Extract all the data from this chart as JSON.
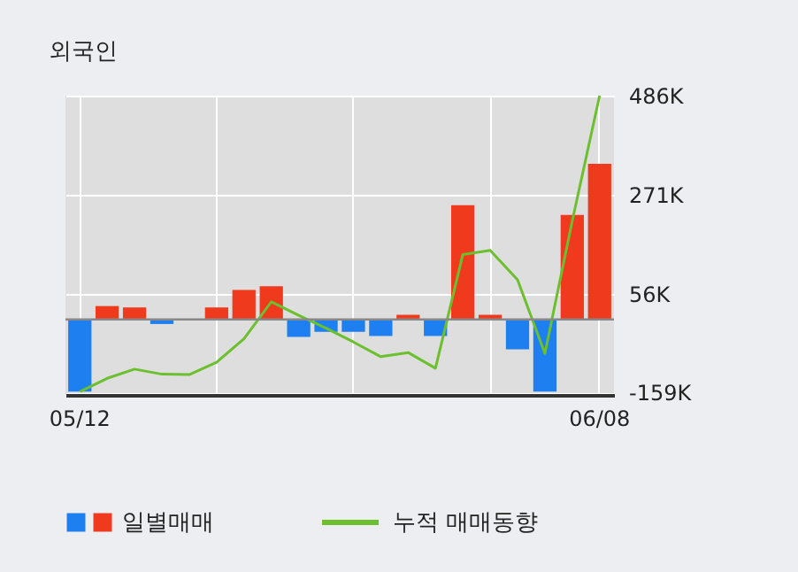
{
  "chart_data": {
    "type": "bar",
    "title": "외국인",
    "categories": [
      "05/12",
      null,
      null,
      null,
      null,
      null,
      null,
      null,
      null,
      null,
      null,
      null,
      null,
      null,
      null,
      null,
      null,
      null,
      null,
      "06/08"
    ],
    "series": [
      {
        "name": "일별매매",
        "colors": [
          "#1e7ff0",
          "#f03a1e",
          "#f03a1e",
          "#1e7ff0",
          "#f03a1e",
          "#f03a1e",
          "#f03a1e",
          "#f03a1e",
          "#1e7ff0",
          "#1e7ff0",
          "#1e7ff0",
          "#1e7ff0",
          "#f03a1e",
          "#1e7ff0",
          "#f03a1e",
          "#f03a1e",
          "#1e7ff0",
          "#1e7ff0",
          "#f03a1e",
          "#f03a1e"
        ],
        "values": [
          -157,
          29,
          26,
          -10,
          0,
          26,
          64,
          72,
          -38,
          -27,
          -27,
          -36,
          10,
          -36,
          248,
          10,
          -65,
          -157,
          227,
          338
        ]
      },
      {
        "name": "누적 매매동향",
        "type": "line",
        "color": "#6cbf2e",
        "values": [
          -157,
          -128,
          -108,
          -119,
          -120,
          -93,
          -42,
          38,
          9,
          -19,
          -49,
          -81,
          -72,
          -106,
          141,
          150,
          86,
          -74,
          214,
          486
        ]
      }
    ],
    "ylim": [
      -164,
      486
    ],
    "yticks": [
      {
        "value": -159,
        "label": "-159K"
      },
      {
        "value": 56,
        "label": "56K"
      },
      {
        "value": 271,
        "label": "271K"
      },
      {
        "value": 486,
        "label": "486K"
      }
    ],
    "ref_lines": [
      {
        "axis": "y",
        "value": 0,
        "color": "#888888"
      }
    ],
    "grid": true,
    "legend": "bottom",
    "marker": "none",
    "line_style": "solid"
  }
}
